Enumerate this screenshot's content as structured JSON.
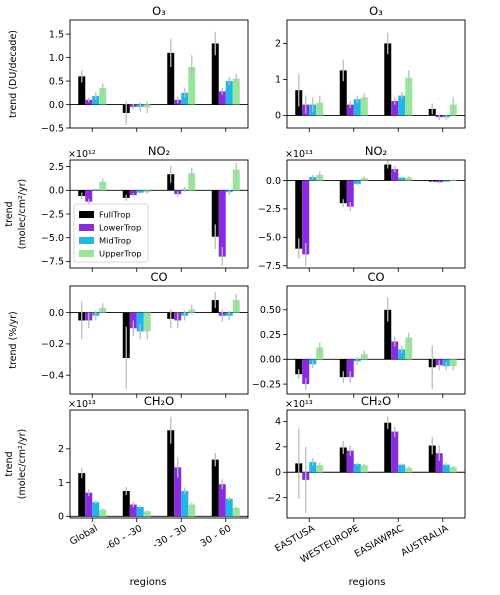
{
  "chart_data": [
    {
      "type": "bar",
      "title": "O₃",
      "ylabel": "trend (DU/decade)",
      "multiplier": "",
      "categories": [
        "Global",
        "-60 - -30",
        "-30 - 30",
        "30 - 60"
      ],
      "ylim": [
        -0.5,
        1.8
      ],
      "yticks": [
        -0.5,
        0.0,
        0.5,
        1.0,
        1.5
      ],
      "tick_labels": [
        "−0.5",
        "0.0",
        "0.5",
        "1.0",
        "1.5"
      ],
      "series": [
        {
          "name": "FullTrop",
          "values": [
            0.6,
            -0.18,
            1.1,
            1.3
          ],
          "err": [
            0.13,
            0.25,
            0.3,
            0.25
          ]
        },
        {
          "name": "LowerTrop",
          "values": [
            0.1,
            -0.05,
            0.1,
            0.28
          ],
          "err": [
            0.05,
            0.06,
            0.07,
            0.07
          ]
        },
        {
          "name": "MidTrop",
          "values": [
            0.18,
            -0.05,
            0.25,
            0.5
          ],
          "err": [
            0.08,
            0.1,
            0.1,
            0.09
          ]
        },
        {
          "name": "UpperTrop",
          "values": [
            0.35,
            -0.06,
            0.8,
            0.55
          ],
          "err": [
            0.1,
            0.12,
            0.25,
            0.1
          ]
        }
      ]
    },
    {
      "type": "bar",
      "title": "O₃",
      "ylabel": "",
      "multiplier": "",
      "categories": [
        "EASTUSA",
        "WESTEUROPE",
        "EASIAWPAC",
        "AUSTRALIA"
      ],
      "ylim": [
        -0.35,
        2.65
      ],
      "yticks": [
        0,
        1,
        2
      ],
      "tick_labels": [
        "0",
        "1",
        "2"
      ],
      "series": [
        {
          "name": "FullTrop",
          "values": [
            0.7,
            1.25,
            2.0,
            0.18
          ],
          "err": [
            0.45,
            0.3,
            0.3,
            0.15
          ]
        },
        {
          "name": "LowerTrop",
          "values": [
            0.3,
            0.3,
            0.4,
            -0.05
          ],
          "err": [
            0.25,
            0.1,
            0.1,
            0.08
          ]
        },
        {
          "name": "MidTrop",
          "values": [
            0.3,
            0.45,
            0.55,
            -0.05
          ],
          "err": [
            0.2,
            0.1,
            0.1,
            0.07
          ]
        },
        {
          "name": "UpperTrop",
          "values": [
            0.35,
            0.5,
            1.05,
            0.3
          ],
          "err": [
            0.2,
            0.12,
            0.2,
            0.2
          ]
        }
      ]
    },
    {
      "type": "bar",
      "title": "NO₂",
      "ylabel": "trend (molec/cm²/yr)",
      "multiplier": "×10¹²",
      "categories": [
        "Global",
        "-60 - -30",
        "-30 - 30",
        "30 - 60"
      ],
      "ylim": [
        -8.2,
        3.2
      ],
      "yticks": [
        -7.5,
        -5.0,
        -2.5,
        0.0,
        2.5
      ],
      "tick_labels": [
        "−7.5",
        "−5.0",
        "−2.5",
        "0.0",
        "2.5"
      ],
      "series": [
        {
          "name": "FullTrop",
          "values": [
            -0.6,
            -0.8,
            1.7,
            -4.9
          ],
          "err": [
            0.35,
            0.3,
            0.9,
            1.3
          ]
        },
        {
          "name": "LowerTrop",
          "values": [
            -1.2,
            -0.5,
            -0.4,
            -7.0
          ],
          "err": [
            0.3,
            0.2,
            0.3,
            1.0
          ]
        },
        {
          "name": "MidTrop",
          "values": [
            0.1,
            -0.25,
            0.1,
            -0.2
          ],
          "err": [
            0.1,
            0.1,
            0.25,
            0.3
          ]
        },
        {
          "name": "UpperTrop",
          "values": [
            0.9,
            -0.2,
            1.8,
            2.2
          ],
          "err": [
            0.35,
            0.15,
            0.6,
            0.7
          ]
        }
      ]
    },
    {
      "type": "bar",
      "title": "NO₂",
      "ylabel": "",
      "multiplier": "×10¹³",
      "categories": [
        "EASTUSA",
        "WESTEUROPE",
        "EASIAWPAC",
        "AUSTRALIA"
      ],
      "ylim": [
        -7.7,
        1.8
      ],
      "yticks": [
        -7.5,
        -5.0,
        -2.5,
        0.0
      ],
      "tick_labels": [
        "−7.5",
        "−5.0",
        "−2.5",
        "0.0"
      ],
      "series": [
        {
          "name": "FullTrop",
          "values": [
            -6.0,
            -2.0,
            1.4,
            -0.1
          ],
          "err": [
            0.9,
            0.35,
            0.35,
            0.08
          ]
        },
        {
          "name": "LowerTrop",
          "values": [
            -6.5,
            -2.3,
            1.0,
            -0.15
          ],
          "err": [
            1.0,
            0.4,
            0.3,
            0.08
          ]
        },
        {
          "name": "MidTrop",
          "values": [
            0.3,
            -0.3,
            0.25,
            -0.1
          ],
          "err": [
            0.2,
            0.1,
            0.1,
            0.05
          ]
        },
        {
          "name": "UpperTrop",
          "values": [
            0.5,
            0.2,
            0.25,
            0.05
          ],
          "err": [
            0.3,
            0.15,
            0.12,
            0.05
          ]
        }
      ]
    },
    {
      "type": "bar",
      "title": "CO",
      "ylabel": "trend (%/yr)",
      "multiplier": "",
      "categories": [
        "Global",
        "-60 - -30",
        "-30 - 30",
        "30 - 60"
      ],
      "ylim": [
        -0.52,
        0.17
      ],
      "yticks": [
        -0.4,
        -0.2,
        0.0
      ],
      "tick_labels": [
        "−0.4",
        "−0.2",
        "0.0"
      ],
      "series": [
        {
          "name": "FullTrop",
          "values": [
            -0.05,
            -0.29,
            -0.04,
            0.08
          ],
          "err": [
            0.12,
            0.2,
            0.06,
            0.05
          ]
        },
        {
          "name": "LowerTrop",
          "values": [
            -0.05,
            -0.1,
            -0.05,
            -0.02
          ],
          "err": [
            0.05,
            0.05,
            0.05,
            0.04
          ]
        },
        {
          "name": "MidTrop",
          "values": [
            -0.02,
            -0.12,
            -0.02,
            -0.02
          ],
          "err": [
            0.03,
            0.05,
            0.03,
            0.03
          ]
        },
        {
          "name": "UpperTrop",
          "values": [
            0.03,
            -0.12,
            0.02,
            0.08
          ],
          "err": [
            0.03,
            0.05,
            0.03,
            0.04
          ]
        }
      ]
    },
    {
      "type": "bar",
      "title": "CO",
      "ylabel": "",
      "multiplier": "",
      "categories": [
        "EASTUSA",
        "WESTEUROPE",
        "EASIAWPAC",
        "AUSTRALIA"
      ],
      "ylim": [
        -0.35,
        0.74
      ],
      "yticks": [
        -0.25,
        0.0,
        0.25,
        0.5
      ],
      "tick_labels": [
        "−0.25",
        "0.00",
        "0.25",
        "0.50"
      ],
      "series": [
        {
          "name": "FullTrop",
          "values": [
            -0.15,
            -0.18,
            0.5,
            -0.08
          ],
          "err": [
            0.05,
            0.06,
            0.12,
            0.22
          ]
        },
        {
          "name": "LowerTrop",
          "values": [
            -0.25,
            -0.18,
            0.18,
            -0.06
          ],
          "err": [
            0.06,
            0.06,
            0.05,
            0.05
          ]
        },
        {
          "name": "MidTrop",
          "values": [
            -0.05,
            -0.02,
            0.1,
            -0.07
          ],
          "err": [
            0.04,
            0.04,
            0.04,
            0.04
          ]
        },
        {
          "name": "UpperTrop",
          "values": [
            0.12,
            0.05,
            0.22,
            -0.07
          ],
          "err": [
            0.05,
            0.04,
            0.05,
            0.04
          ]
        }
      ]
    },
    {
      "type": "bar",
      "title": "CH₂O",
      "ylabel": "trend (molec/cm²/yr)",
      "multiplier": "×10¹³",
      "categories": [
        "Global",
        "-60 - -30",
        "-30 - 30",
        "30 - 60"
      ],
      "ylim": [
        -0.05,
        3.15
      ],
      "yticks": [
        0,
        1,
        2
      ],
      "tick_labels": [
        "0",
        "1",
        "2"
      ],
      "series": [
        {
          "name": "FullTrop",
          "values": [
            1.28,
            0.75,
            2.55,
            1.68
          ],
          "err": [
            0.15,
            0.12,
            0.4,
            0.2
          ]
        },
        {
          "name": "LowerTrop",
          "values": [
            0.7,
            0.35,
            1.45,
            0.95
          ],
          "err": [
            0.1,
            0.08,
            0.3,
            0.15
          ]
        },
        {
          "name": "MidTrop",
          "values": [
            0.42,
            0.28,
            0.75,
            0.52
          ],
          "err": [
            0.05,
            0.04,
            0.1,
            0.06
          ]
        },
        {
          "name": "UpperTrop",
          "values": [
            0.2,
            0.15,
            0.35,
            0.25
          ],
          "err": [
            0.03,
            0.03,
            0.05,
            0.04
          ]
        }
      ]
    },
    {
      "type": "bar",
      "title": "CH₂O",
      "ylabel": "",
      "multiplier": "×10¹³",
      "categories": [
        "EASTUSA",
        "WESTEUROPE",
        "EASIAWPAC",
        "AUSTRALIA"
      ],
      "ylim": [
        -3.6,
        4.9
      ],
      "yticks": [
        -2,
        0,
        2,
        4
      ],
      "tick_labels": [
        "−2",
        "0",
        "2",
        "4"
      ],
      "series": [
        {
          "name": "FullTrop",
          "values": [
            0.7,
            1.95,
            3.9,
            2.1
          ],
          "err": [
            2.8,
            0.5,
            0.5,
            0.7
          ]
        },
        {
          "name": "LowerTrop",
          "values": [
            -0.6,
            1.7,
            3.2,
            1.5
          ],
          "err": [
            2.6,
            0.4,
            0.4,
            0.6
          ]
        },
        {
          "name": "MidTrop",
          "values": [
            0.8,
            0.65,
            0.6,
            0.6
          ],
          "err": [
            0.3,
            0.1,
            0.1,
            0.15
          ]
        },
        {
          "name": "UpperTrop",
          "values": [
            0.55,
            0.55,
            0.35,
            0.4
          ],
          "err": [
            0.2,
            0.1,
            0.1,
            0.1
          ]
        }
      ]
    }
  ],
  "legend": [
    "FullTrop",
    "LowerTrop",
    "MidTrop",
    "UpperTrop"
  ],
  "xlabel": "regions",
  "colors": {
    "FullTrop": "#000000",
    "LowerTrop": "#8a2be2",
    "MidTrop": "#1fb6e8",
    "UpperTrop": "#97e69a",
    "errorbar": "#bdbdbd"
  }
}
